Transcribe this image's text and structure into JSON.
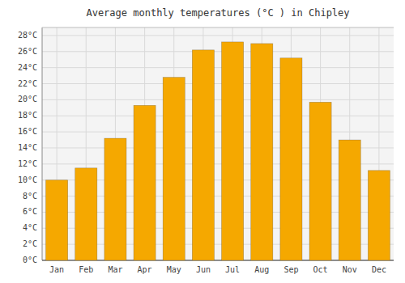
{
  "chart_data": {
    "type": "bar",
    "title": "Average monthly temperatures (°C ) in Chipley",
    "categories": [
      "Jan",
      "Feb",
      "Mar",
      "Apr",
      "May",
      "Jun",
      "Jul",
      "Aug",
      "Sep",
      "Oct",
      "Nov",
      "Dec"
    ],
    "values": [
      10.0,
      11.5,
      15.2,
      19.3,
      22.8,
      26.2,
      27.2,
      27.0,
      25.2,
      19.7,
      15.0,
      11.2
    ],
    "color": "#F5A800",
    "ylim": [
      0,
      29
    ],
    "yticks": [
      {
        "value": 0,
        "label": "0°C"
      },
      {
        "value": 2,
        "label": "2°C"
      },
      {
        "value": 4,
        "label": "4°C"
      },
      {
        "value": 6,
        "label": "6°C"
      },
      {
        "value": 8,
        "label": "8°C"
      },
      {
        "value": 10,
        "label": "10°C"
      },
      {
        "value": 12,
        "label": "12°C"
      },
      {
        "value": 14,
        "label": "14°C"
      },
      {
        "value": 16,
        "label": "16°C"
      },
      {
        "value": 18,
        "label": "18°C"
      },
      {
        "value": 20,
        "label": "20°C"
      },
      {
        "value": 22,
        "label": "22°C"
      },
      {
        "value": 24,
        "label": "24°C"
      },
      {
        "value": 26,
        "label": "26°C"
      },
      {
        "value": 28,
        "label": "28°C"
      }
    ],
    "grid": true
  }
}
